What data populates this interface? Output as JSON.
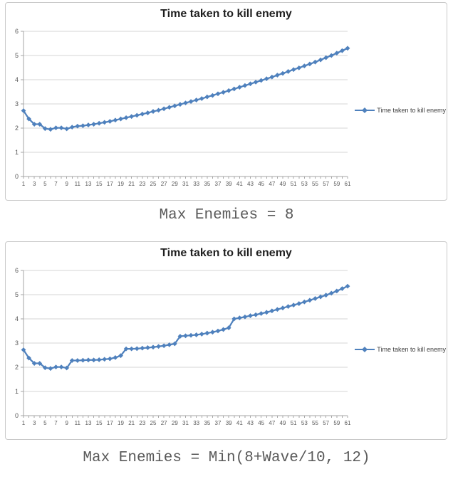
{
  "page": {
    "background": "#ffffff"
  },
  "style": {
    "accent_color": "#4F81BD",
    "grid_color": "#D5D5D5",
    "axis_color": "#A6A6A6",
    "tick_label_color": "#595959",
    "title_color": "#1F1F1F",
    "caption_color": "#595959",
    "frame_border_color": "#C9C9C9",
    "legend_text_color": "#404040"
  },
  "chart_data": [
    {
      "type": "line",
      "title": "Time taken to kill enemy",
      "caption": "Max Enemies = 8",
      "legend_position": "right",
      "grid": true,
      "marker": "diamond",
      "xlabel": "",
      "ylabel": "",
      "ylim": [
        0,
        6
      ],
      "yticks": [
        0,
        1,
        2,
        3,
        4,
        5,
        6
      ],
      "xtick_label_step": 2,
      "x": [
        1,
        2,
        3,
        4,
        5,
        6,
        7,
        8,
        9,
        10,
        11,
        12,
        13,
        14,
        15,
        16,
        17,
        18,
        19,
        20,
        21,
        22,
        23,
        24,
        25,
        26,
        27,
        28,
        29,
        30,
        31,
        32,
        33,
        34,
        35,
        36,
        37,
        38,
        39,
        40,
        41,
        42,
        43,
        44,
        45,
        46,
        47,
        48,
        49,
        50,
        51,
        52,
        53,
        54,
        55,
        56,
        57,
        58,
        59,
        60,
        61
      ],
      "series": [
        {
          "name": "Time taken to kill enemy",
          "color": "#4F81BD",
          "values": [
            2.72,
            2.38,
            2.16,
            2.16,
            1.98,
            1.95,
            2.01,
            2.01,
            1.97,
            2.04,
            2.08,
            2.1,
            2.13,
            2.16,
            2.2,
            2.24,
            2.28,
            2.33,
            2.38,
            2.43,
            2.48,
            2.53,
            2.58,
            2.63,
            2.69,
            2.74,
            2.8,
            2.86,
            2.92,
            2.98,
            3.04,
            3.1,
            3.16,
            3.22,
            3.29,
            3.35,
            3.42,
            3.48,
            3.55,
            3.62,
            3.69,
            3.76,
            3.83,
            3.9,
            3.97,
            4.04,
            4.11,
            4.19,
            4.26,
            4.34,
            4.42,
            4.49,
            4.57,
            4.65,
            4.73,
            4.82,
            4.91,
            5.0,
            5.1,
            5.2,
            5.3
          ]
        }
      ]
    },
    {
      "type": "line",
      "title": "Time taken to kill enemy",
      "caption": "Max Enemies = Min(8+Wave/10, 12)",
      "legend_position": "right",
      "grid": true,
      "marker": "diamond",
      "xlabel": "",
      "ylabel": "",
      "ylim": [
        0,
        6
      ],
      "yticks": [
        0,
        1,
        2,
        3,
        4,
        5,
        6
      ],
      "xtick_label_step": 2,
      "x": [
        1,
        2,
        3,
        4,
        5,
        6,
        7,
        8,
        9,
        10,
        11,
        12,
        13,
        14,
        15,
        16,
        17,
        18,
        19,
        20,
        21,
        22,
        23,
        24,
        25,
        26,
        27,
        28,
        29,
        30,
        31,
        32,
        33,
        34,
        35,
        36,
        37,
        38,
        39,
        40,
        41,
        42,
        43,
        44,
        45,
        46,
        47,
        48,
        49,
        50,
        51,
        52,
        53,
        54,
        55,
        56,
        57,
        58,
        59,
        60,
        61
      ],
      "series": [
        {
          "name": "Time taken to kill enemy",
          "color": "#4F81BD",
          "values": [
            2.72,
            2.38,
            2.16,
            2.16,
            1.98,
            1.95,
            2.01,
            2.01,
            1.97,
            2.28,
            2.28,
            2.29,
            2.3,
            2.3,
            2.31,
            2.33,
            2.35,
            2.4,
            2.48,
            2.76,
            2.76,
            2.77,
            2.79,
            2.81,
            2.83,
            2.86,
            2.89,
            2.93,
            2.97,
            3.28,
            3.3,
            3.32,
            3.34,
            3.37,
            3.41,
            3.45,
            3.5,
            3.56,
            3.63,
            4.0,
            4.04,
            4.08,
            4.13,
            4.17,
            4.22,
            4.27,
            4.33,
            4.39,
            4.45,
            4.51,
            4.57,
            4.63,
            4.7,
            4.77,
            4.84,
            4.91,
            4.98,
            5.06,
            5.15,
            5.25,
            5.35
          ]
        }
      ]
    }
  ]
}
